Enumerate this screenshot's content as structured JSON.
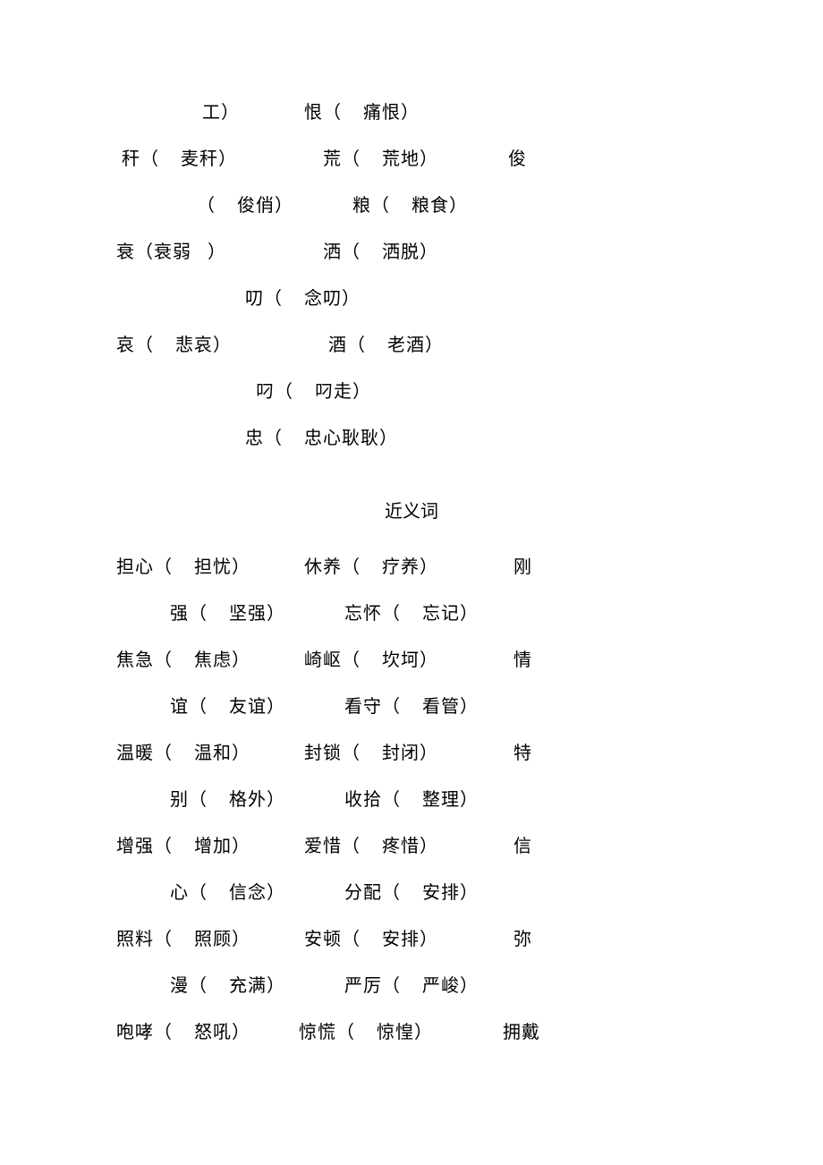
{
  "section1": {
    "lines": [
      "                工）            恨（    痛恨）",
      " 秆（    麦秆）                荒（    荒地）             俊",
      "               （    俊俏）           粮（    粮食）",
      "",
      "衰（衰弱   ）                  洒（    洒脱）",
      "                        叨（    念叨）",
      "哀（    悲哀）                  酒（    老酒）",
      "                          叼（    叼走）",
      "                        忠（    忠心耿耿）"
    ]
  },
  "section2": {
    "title": "近义词",
    "lines": [
      "担心（    担忧）          休养（    疗养）              刚",
      "          强（    坚强）           忘怀（    忘记）",
      "焦急（    焦虑）          崎岖（    坎坷）              情",
      "          谊（    友谊）           看守（    看管）",
      "温暖（    温和）          封锁（    封闭）              特",
      "          别（    格外）           收拾（    整理）",
      "增强（    增加）          爱惜（    疼惜）              信",
      "          心（    信念）           分配（    安排）",
      "照料（    照顾）          安顿（    安排）              弥",
      "          漫（    充满）           严厉（    严峻）",
      "咆哮（    怒吼）         惊慌（    惊惶）             拥戴"
    ]
  },
  "style": {
    "background_color": "#ffffff",
    "text_color": "#000000",
    "font_family": "SimSun",
    "font_size": 20,
    "line_height": 2.6,
    "letter_spacing": 1
  }
}
